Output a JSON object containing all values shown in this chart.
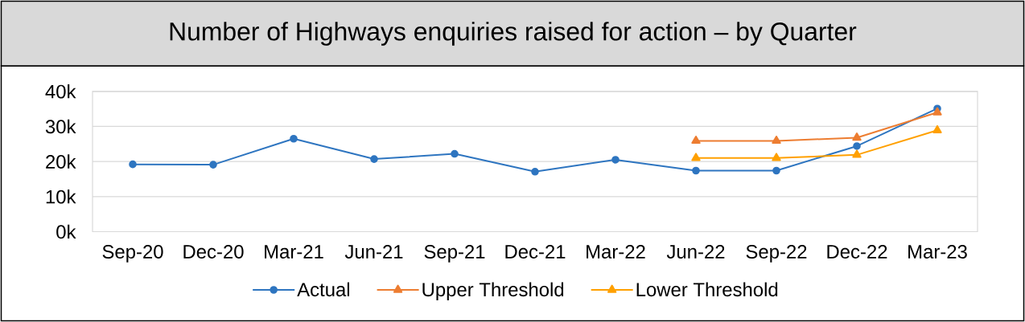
{
  "chart_data": {
    "type": "line",
    "title": "Number of Highways enquiries raised for action – by Quarter",
    "categories": [
      "Sep-20",
      "Dec-20",
      "Mar-21",
      "Jun-21",
      "Sep-21",
      "Dec-21",
      "Mar-22",
      "Jun-22",
      "Sep-22",
      "Dec-22",
      "Mar-23"
    ],
    "series": [
      {
        "name": "Actual",
        "color": "#2e75c0",
        "marker": "circle",
        "values": [
          19200,
          19100,
          26500,
          20700,
          22200,
          17100,
          20500,
          17400,
          17400,
          24400,
          35100
        ]
      },
      {
        "name": "Upper Threshold",
        "color": "#ed7d31",
        "marker": "triangle",
        "values": [
          null,
          null,
          null,
          null,
          null,
          null,
          null,
          25900,
          25900,
          26800,
          34000
        ]
      },
      {
        "name": "Lower Threshold",
        "color": "#ffa000",
        "marker": "triangle",
        "values": [
          null,
          null,
          null,
          null,
          null,
          null,
          null,
          21000,
          21000,
          21900,
          28900
        ]
      }
    ],
    "ylim": [
      0,
      40000
    ],
    "yticks": [
      {
        "value": 0,
        "label": "0k"
      },
      {
        "value": 10000,
        "label": "10k"
      },
      {
        "value": 20000,
        "label": "20k"
      },
      {
        "value": 30000,
        "label": "30k"
      },
      {
        "value": 40000,
        "label": "40k"
      }
    ],
    "grid": "y",
    "legend": "bottom"
  }
}
